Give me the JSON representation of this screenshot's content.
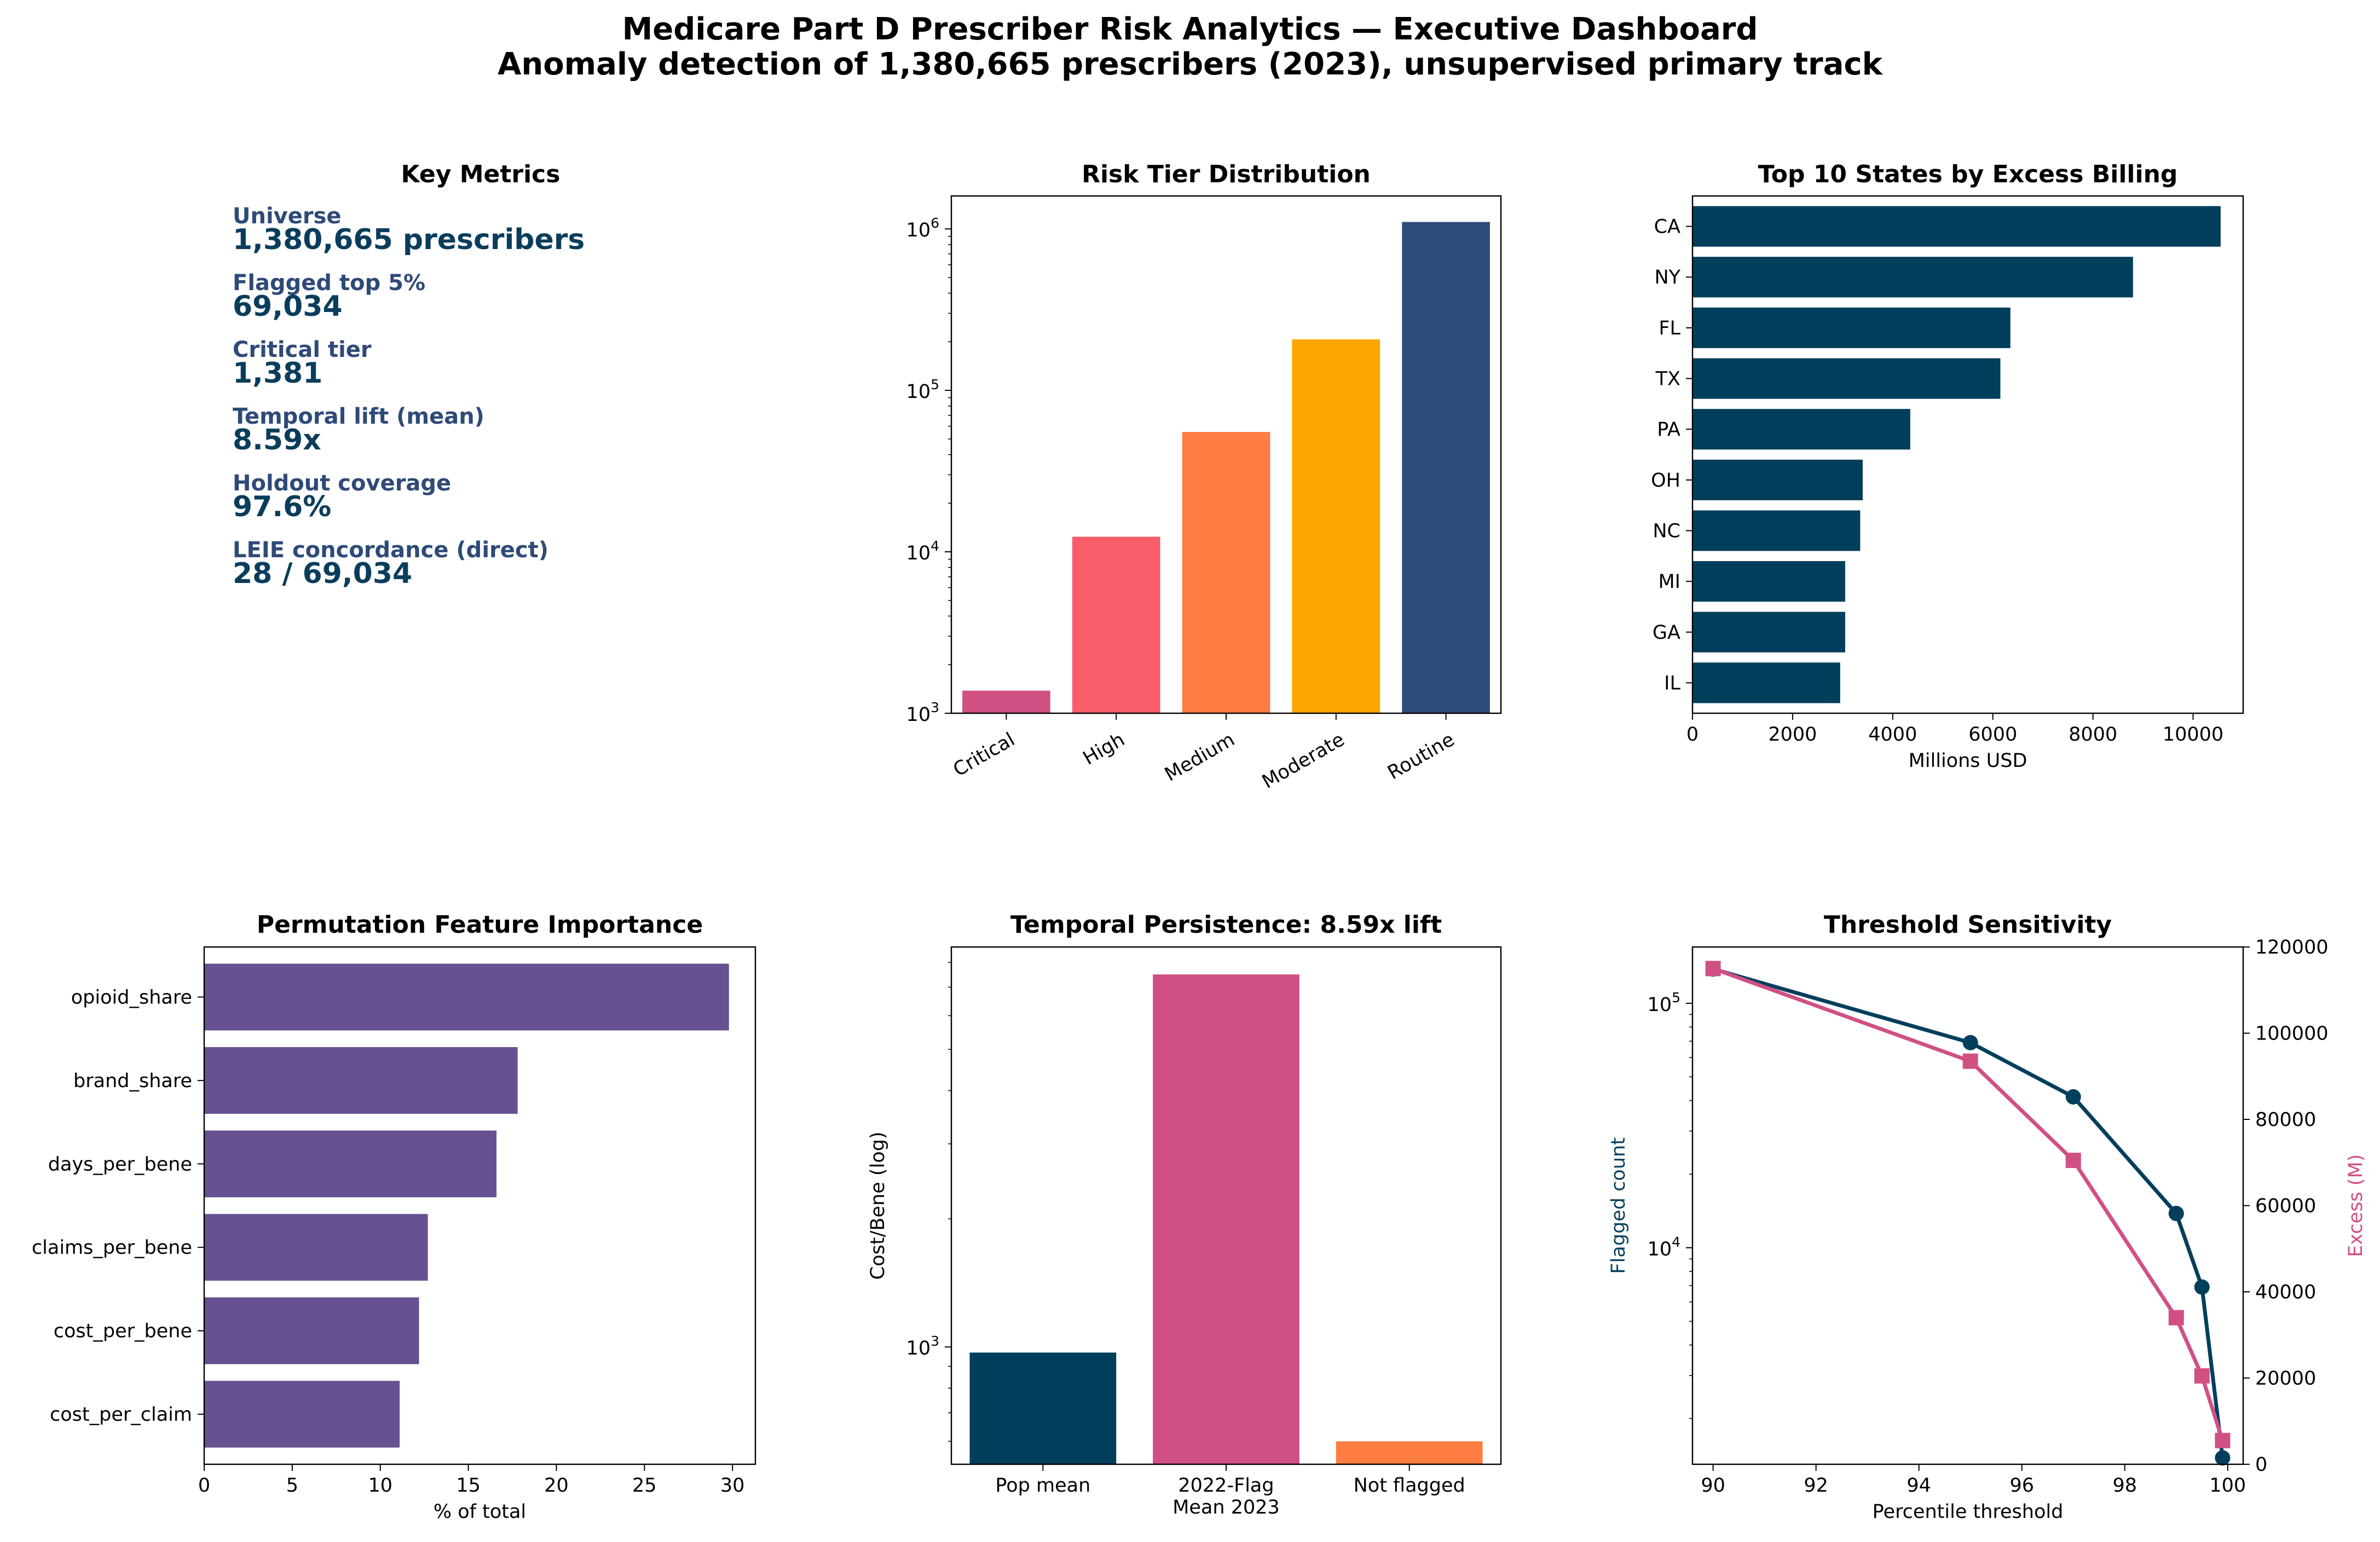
{
  "dashboard": {
    "title": "Medicare Part D Prescriber Risk Analytics — Executive Dashboard",
    "subtitle": "Anomaly detection of 1,380,665 prescribers (2023), unsupervised primary track"
  },
  "key_metrics": {
    "title": "Key Metrics",
    "label_color": "#2e4a78",
    "value_color": "#0a3d5c",
    "items": [
      {
        "label": "Universe",
        "value": "1,380,665 prescribers"
      },
      {
        "label": "Flagged top 5%",
        "value": "69,034"
      },
      {
        "label": "Critical tier",
        "value": "1,381"
      },
      {
        "label": "Temporal lift (mean)",
        "value": "8.59x"
      },
      {
        "label": "Holdout coverage",
        "value": "97.6%"
      },
      {
        "label": "LEIE concordance (direct)",
        "value": "28 / 69,034"
      }
    ]
  },
  "chart_data": [
    {
      "id": "risk_tier",
      "type": "bar",
      "title": "Risk Tier Distribution",
      "categories": [
        "Critical",
        "High",
        "Medium",
        "Moderate",
        "Routine"
      ],
      "values": [
        1381,
        12400,
        55253,
        207100,
        1104500
      ],
      "colors": [
        "#d05084",
        "#f95d6a",
        "#ff7c43",
        "#ffa600",
        "#2f4b7c"
      ],
      "yscale": "log",
      "ylim": [
        1000,
        1600000
      ],
      "yticks": [
        {
          "v": 1000,
          "base": "10",
          "exp": "3"
        },
        {
          "v": 10000,
          "base": "10",
          "exp": "4"
        },
        {
          "v": 100000,
          "base": "10",
          "exp": "5"
        },
        {
          "v": 1000000,
          "base": "10",
          "exp": "6"
        }
      ],
      "xlabel": "",
      "ylabel": ""
    },
    {
      "id": "top_states",
      "type": "bar",
      "orientation": "horizontal",
      "title": "Top 10 States by Excess Billing",
      "categories": [
        "CA",
        "NY",
        "FL",
        "TX",
        "PA",
        "OH",
        "NC",
        "MI",
        "GA",
        "IL"
      ],
      "values": [
        10550,
        8800,
        6350,
        6150,
        4350,
        3400,
        3350,
        3050,
        3050,
        2950
      ],
      "color": "#003f5c",
      "xlim": [
        0,
        11000
      ],
      "xticks": [
        "0",
        "2000",
        "4000",
        "6000",
        "8000",
        "10000"
      ],
      "xlabel": "Millions USD",
      "ylabel": ""
    },
    {
      "id": "feature_importance",
      "type": "bar",
      "orientation": "horizontal",
      "title": "Permutation Feature Importance",
      "categories": [
        "opioid_share",
        "brand_share",
        "days_per_bene",
        "claims_per_bene",
        "cost_per_bene",
        "cost_per_claim"
      ],
      "values": [
        29.8,
        17.8,
        16.6,
        12.7,
        12.2,
        11.1
      ],
      "color": "#665191",
      "xlim": [
        0,
        31.3
      ],
      "xticks": [
        "0",
        "5",
        "10",
        "15",
        "20",
        "25",
        "30"
      ],
      "xlabel": "% of total",
      "ylabel": ""
    },
    {
      "id": "temporal",
      "type": "bar",
      "title": "Temporal Persistence: 8.59x lift",
      "categories": [
        "Pop mean",
        "2022-Flag\nMean 2023",
        "Not flagged"
      ],
      "values": [
        970,
        7500,
        600
      ],
      "colors": [
        "#003f5c",
        "#d05084",
        "#ff7c43"
      ],
      "yscale": "log",
      "ylim": [
        530,
        8700
      ],
      "yticks": [
        {
          "v": 1000,
          "base": "10",
          "exp": "3"
        }
      ],
      "xlabel": "",
      "ylabel": "Cost/Bene (log)"
    },
    {
      "id": "threshold",
      "type": "line",
      "title": "Threshold Sensitivity",
      "x": [
        90,
        95,
        97,
        99,
        99.5,
        99.9
      ],
      "series": [
        {
          "name": "Flagged count",
          "axis": "left",
          "values": [
            138100,
            69034,
            41420,
            13810,
            6903,
            1381
          ],
          "color": "#003f5c",
          "marker": "circle"
        },
        {
          "name": "Excess (M)",
          "axis": "right",
          "values": [
            115000,
            93500,
            70500,
            34000,
            20500,
            5500
          ],
          "color": "#d05084",
          "marker": "square"
        }
      ],
      "xlim": [
        89.6,
        100.3
      ],
      "xticks": [
        "90",
        "92",
        "94",
        "96",
        "98",
        "100"
      ],
      "ylim_left": [
        1300,
        170000
      ],
      "yscale_left": "log",
      "yticks_left": [
        {
          "v": 10000,
          "base": "10",
          "exp": "4"
        },
        {
          "v": 100000,
          "base": "10",
          "exp": "5"
        }
      ],
      "ylim_right": [
        0,
        120000
      ],
      "yticks_right": [
        "0",
        "20000",
        "40000",
        "60000",
        "80000",
        "100000",
        "120000"
      ],
      "xlabel": "Percentile threshold",
      "ylabel_left": "Flagged count",
      "ylabel_right": "Excess (M)"
    }
  ]
}
